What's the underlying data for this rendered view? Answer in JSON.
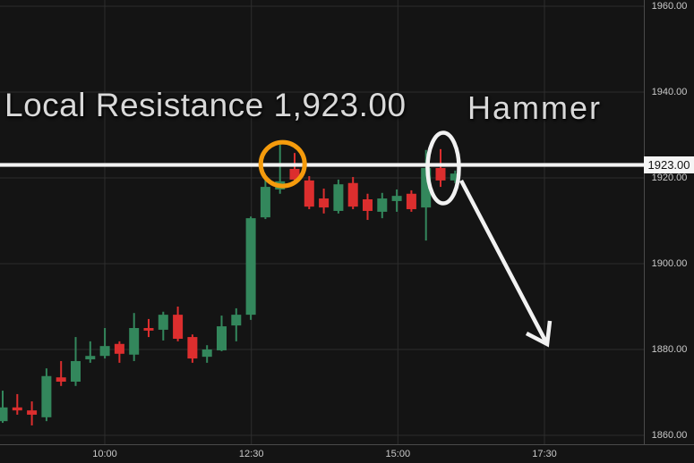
{
  "colors": {
    "background": "#141414",
    "grid": "#2d2d2d",
    "axis_line": "#4a4a4a",
    "axis_text": "#c9c9c9",
    "up": "#33875c",
    "down": "#dc2e2e",
    "annotation_text": "#d9d9d9",
    "annotation_white": "#f2f2f2",
    "annotation_orange": "#f59b0c",
    "price_label_bg": "#f5f5f5",
    "price_label_text": "#111111"
  },
  "annotations": {
    "resistance_text": "Local Resistance 1,923.00",
    "hammer_text": "Hammer",
    "resistance_price_label": "1923.00",
    "circle_icon": "orange-circle-marker",
    "ellipse_icon": "white-ellipse-marker",
    "arrow_icon": "down-right-arrow"
  },
  "chart_data": {
    "type": "candlestick",
    "title": "Local Resistance 1,923.00",
    "xlabel": "",
    "ylabel": "",
    "grid": true,
    "legend_position": "none",
    "x_tick_labels": [
      "10:00",
      "12:30",
      "15:00",
      "17:30"
    ],
    "y_tick_labels": [
      "1960.00",
      "1940.00",
      "1920.00",
      "1900.00",
      "1880.00",
      "1860.00"
    ],
    "y_tick_values": [
      1960,
      1940,
      1920,
      1900,
      1880,
      1860
    ],
    "y_range": [
      1858,
      1961.5
    ],
    "resistance_level": 1923.0,
    "candles": [
      {
        "o": 1863.3,
        "h": 1870.4,
        "l": 1862.9,
        "c": 1866.5
      },
      {
        "o": 1866.5,
        "h": 1869.6,
        "l": 1864.8,
        "c": 1865.8
      },
      {
        "o": 1865.8,
        "h": 1867.9,
        "l": 1862.3,
        "c": 1864.8
      },
      {
        "o": 1864.2,
        "h": 1875.6,
        "l": 1863.3,
        "c": 1873.8
      },
      {
        "o": 1873.5,
        "h": 1877.3,
        "l": 1871.5,
        "c": 1872.5
      },
      {
        "o": 1872.5,
        "h": 1882.9,
        "l": 1871.5,
        "c": 1877.3
      },
      {
        "o": 1877.7,
        "h": 1881.9,
        "l": 1876.9,
        "c": 1878.5
      },
      {
        "o": 1878.5,
        "h": 1885.0,
        "l": 1877.9,
        "c": 1880.8
      },
      {
        "o": 1881.3,
        "h": 1881.9,
        "l": 1876.9,
        "c": 1879.0
      },
      {
        "o": 1878.8,
        "h": 1888.5,
        "l": 1877.3,
        "c": 1885.0
      },
      {
        "o": 1885.0,
        "h": 1887.1,
        "l": 1882.9,
        "c": 1884.4
      },
      {
        "o": 1884.6,
        "h": 1888.8,
        "l": 1882.1,
        "c": 1888.1
      },
      {
        "o": 1888.1,
        "h": 1890.0,
        "l": 1881.9,
        "c": 1882.5
      },
      {
        "o": 1882.9,
        "h": 1883.5,
        "l": 1876.9,
        "c": 1877.9
      },
      {
        "o": 1878.3,
        "h": 1881.0,
        "l": 1876.9,
        "c": 1880.0
      },
      {
        "o": 1879.8,
        "h": 1887.9,
        "l": 1879.6,
        "c": 1885.4
      },
      {
        "o": 1885.6,
        "h": 1889.6,
        "l": 1881.9,
        "c": 1888.1
      },
      {
        "o": 1888.1,
        "h": 1911.0,
        "l": 1886.9,
        "c": 1910.6
      },
      {
        "o": 1910.8,
        "h": 1920.0,
        "l": 1910.4,
        "c": 1917.9
      },
      {
        "o": 1917.3,
        "h": 1927.7,
        "l": 1916.3,
        "c": 1919.2
      },
      {
        "o": 1922.1,
        "h": 1925.8,
        "l": 1918.5,
        "c": 1919.6
      },
      {
        "o": 1919.4,
        "h": 1920.4,
        "l": 1912.7,
        "c": 1913.3
      },
      {
        "o": 1915.2,
        "h": 1917.5,
        "l": 1911.7,
        "c": 1913.1
      },
      {
        "o": 1912.3,
        "h": 1919.6,
        "l": 1911.7,
        "c": 1918.5
      },
      {
        "o": 1918.8,
        "h": 1920.2,
        "l": 1912.7,
        "c": 1913.3
      },
      {
        "o": 1915.0,
        "h": 1916.3,
        "l": 1910.2,
        "c": 1912.3
      },
      {
        "o": 1912.1,
        "h": 1916.5,
        "l": 1910.6,
        "c": 1915.2
      },
      {
        "o": 1914.6,
        "h": 1917.3,
        "l": 1912.1,
        "c": 1915.8
      },
      {
        "o": 1916.3,
        "h": 1917.1,
        "l": 1912.1,
        "c": 1912.7
      },
      {
        "o": 1913.1,
        "h": 1926.5,
        "l": 1905.4,
        "c": 1922.3
      },
      {
        "o": 1922.3,
        "h": 1926.7,
        "l": 1917.9,
        "c": 1919.4
      },
      {
        "o": 1919.4,
        "h": 1921.7,
        "l": 1918.8,
        "c": 1921.0
      }
    ],
    "annotated_candles": {
      "orange_circle_candle_index": 19,
      "hammer_candle_index": 30
    }
  }
}
